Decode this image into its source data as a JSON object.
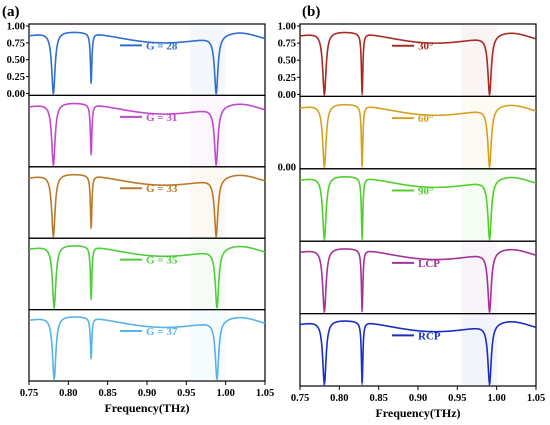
{
  "chart_data": [
    {
      "type": "line",
      "panel_label": "(a)",
      "xlabel": "Frequency(THz)",
      "xlim": [
        0.75,
        1.05
      ],
      "x_ticks": [
        "0.75",
        "0.80",
        "0.85",
        "0.90",
        "0.95",
        "1.00",
        "1.05"
      ],
      "ylim": [
        0,
        1
      ],
      "y_ticks_top_subplot": [
        "0.00",
        "0.25",
        "0.50",
        "0.75",
        "1.00"
      ],
      "series": [
        {
          "name": "G = 28",
          "color": "#2f6fce",
          "dips": [
            [
              0.781,
              0.0
            ],
            [
              0.829,
              0.15
            ],
            [
              0.988,
              0.0
            ]
          ]
        },
        {
          "name": "G = 31",
          "color": "#c049cf",
          "dips": [
            [
              0.781,
              0.0
            ],
            [
              0.829,
              0.15
            ],
            [
              0.988,
              0.0
            ]
          ]
        },
        {
          "name": "G = 33",
          "color": "#bb7a2a",
          "dips": [
            [
              0.781,
              0.0
            ],
            [
              0.829,
              0.12
            ],
            [
              0.988,
              0.0
            ]
          ]
        },
        {
          "name": "G = 35",
          "color": "#4fcd3c",
          "dips": [
            [
              0.782,
              0.0
            ],
            [
              0.829,
              0.12
            ],
            [
              0.989,
              0.0
            ]
          ]
        },
        {
          "name": "G = 37",
          "color": "#58b3e8",
          "dips": [
            [
              0.782,
              0.0
            ],
            [
              0.829,
              0.3
            ],
            [
              0.989,
              0.0
            ]
          ]
        }
      ]
    },
    {
      "type": "line",
      "panel_label": "(b)",
      "xlabel": "Frequency(THz)",
      "xlim": [
        0.75,
        1.05
      ],
      "x_ticks": [
        "0.75",
        "0.80",
        "0.85",
        "0.90",
        "0.95",
        "1.00",
        "1.05"
      ],
      "ylim": [
        0,
        1
      ],
      "y_ticks_top_subplot": [
        "0.00",
        "0.25",
        "0.50",
        "0.75",
        "1.00"
      ],
      "second_subplot_y_tick": "0.00",
      "series": [
        {
          "name": "30°",
          "color": "#a82a22",
          "dips": [
            [
              0.781,
              0.0
            ],
            [
              0.829,
              0.0
            ],
            [
              0.991,
              0.0
            ]
          ]
        },
        {
          "name": "60°",
          "color": "#d4a21e",
          "dips": [
            [
              0.781,
              0.0
            ],
            [
              0.829,
              0.0
            ],
            [
              0.991,
              0.0
            ]
          ]
        },
        {
          "name": "90°",
          "color": "#52cf2a",
          "dips": [
            [
              0.781,
              0.0
            ],
            [
              0.829,
              0.0
            ],
            [
              0.991,
              0.0
            ]
          ]
        },
        {
          "name": "LCP",
          "color": "#a3339a",
          "dips": [
            [
              0.781,
              0.0
            ],
            [
              0.829,
              0.0
            ],
            [
              0.991,
              0.0
            ]
          ]
        },
        {
          "name": "RCP",
          "color": "#1a2ec4",
          "dips": [
            [
              0.781,
              0.0
            ],
            [
              0.829,
              0.0
            ],
            [
              0.991,
              0.0
            ]
          ]
        }
      ]
    }
  ]
}
